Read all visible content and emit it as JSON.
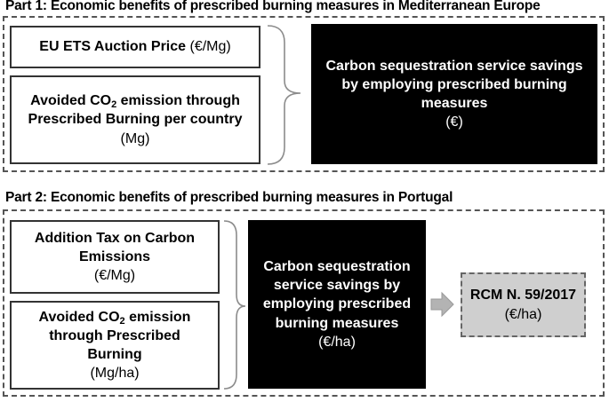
{
  "part1": {
    "title": "Part 1: Economic benefits of prescribed burning measures in Mediterranean Europe",
    "input1": {
      "label": "EU ETS Auction Price",
      "unit": "(€/Mg)"
    },
    "input2": {
      "line1_before": "Avoided CO",
      "line1_sub": "2",
      "line1_after": " emission through",
      "line2": "Prescribed Burning per country",
      "unit": "(Mg)"
    },
    "output": {
      "line1": "Carbon sequestration service savings",
      "line2": "by employing prescribed burning",
      "line3": "measures",
      "unit": "(€)"
    }
  },
  "part2": {
    "title": "Part 2: Economic benefits of prescribed burning measures in Portugal",
    "input1": {
      "line1": "Addition Tax on Carbon",
      "line2": "Emissions",
      "unit": "(€/Mg)"
    },
    "input2": {
      "line1_before": "Avoided CO",
      "line1_sub": "2",
      "line1_after": " emission",
      "line2": "through Prescribed",
      "line3": "Burning",
      "unit": "(Mg/ha)"
    },
    "output": {
      "line1": "Carbon sequestration",
      "line2": "service savings by",
      "line3": "employing prescribed",
      "line4": "burning measures",
      "unit": "(€/ha)"
    },
    "final": {
      "label": "RCM N. 59/2017",
      "unit": "(€/ha)"
    }
  },
  "colors": {
    "output_fill": "#000000",
    "final_fill": "#cfcfcf",
    "frame": "#555555",
    "arrow": "#b3b3b3"
  }
}
